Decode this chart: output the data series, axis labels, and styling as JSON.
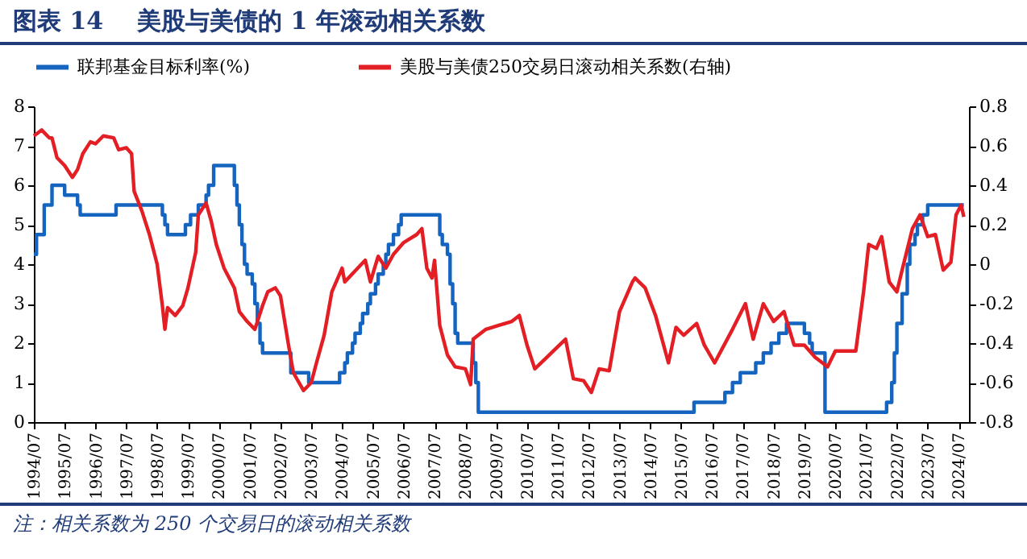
{
  "chart_data": {
    "type": "line",
    "title": "图表 14    美股与美债的 1 年滚动相关系数",
    "annotations": [
      "注：相关系数为 250 个交易日的滚动相关系数"
    ],
    "legend": "top",
    "xlim": [
      "1994-07",
      "2024-11"
    ],
    "xticks": [
      {
        "value": "1994-07",
        "label": "1994/07"
      },
      {
        "value": "1995-07",
        "label": "1995/07"
      },
      {
        "value": "1996-07",
        "label": "1996/07"
      },
      {
        "value": "1997-07",
        "label": "1997/07"
      },
      {
        "value": "1998-07",
        "label": "1998/07"
      },
      {
        "value": "1999-07",
        "label": "1999/07"
      },
      {
        "value": "2000-07",
        "label": "2000/07"
      },
      {
        "value": "2001-07",
        "label": "2001/07"
      },
      {
        "value": "2002-07",
        "label": "2002/07"
      },
      {
        "value": "2003-07",
        "label": "2003/07"
      },
      {
        "value": "2004-07",
        "label": "2004/07"
      },
      {
        "value": "2005-07",
        "label": "2005/07"
      },
      {
        "value": "2006-07",
        "label": "2006/07"
      },
      {
        "value": "2007-07",
        "label": "2007/07"
      },
      {
        "value": "2008-07",
        "label": "2008/07"
      },
      {
        "value": "2009-07",
        "label": "2009/07"
      },
      {
        "value": "2010-07",
        "label": "2010/07"
      },
      {
        "value": "2011-07",
        "label": "2011/07"
      },
      {
        "value": "2012-07",
        "label": "2012/07"
      },
      {
        "value": "2013-07",
        "label": "2013/07"
      },
      {
        "value": "2014-07",
        "label": "2014/07"
      },
      {
        "value": "2015-07",
        "label": "2015/07"
      },
      {
        "value": "2016-07",
        "label": "2016/07"
      },
      {
        "value": "2017-07",
        "label": "2017/07"
      },
      {
        "value": "2018-07",
        "label": "2018/07"
      },
      {
        "value": "2019-07",
        "label": "2019/07"
      },
      {
        "value": "2020-07",
        "label": "2020/07"
      },
      {
        "value": "2021-07",
        "label": "2021/07"
      },
      {
        "value": "2022-07",
        "label": "2022/07"
      },
      {
        "value": "2023-07",
        "label": "2023/07"
      },
      {
        "value": "2024-07",
        "label": "2024/07"
      }
    ],
    "ylim": [
      0,
      8
    ],
    "yticks": [
      0,
      1,
      2,
      3,
      4,
      5,
      6,
      7,
      8
    ],
    "y2lim": [
      -0.8,
      0.8
    ],
    "y2ticks": [
      -0.8,
      -0.6,
      -0.4,
      -0.2,
      0,
      0.2,
      0.4,
      0.6,
      0.8
    ],
    "series": [
      {
        "name": "联邦基金目标利率(%)",
        "type": "step",
        "color": "#1565c0",
        "x": [
          "1994-07",
          "1994-08",
          "1994-11",
          "1995-02",
          "1995-07",
          "1995-12",
          "1996-01",
          "1997-03",
          "1998-09",
          "1998-10",
          "1998-11",
          "1999-06",
          "1999-08",
          "1999-11",
          "2000-02",
          "2000-03",
          "2000-05",
          "2001-01",
          "2001-02",
          "2001-03",
          "2001-04",
          "2001-05",
          "2001-06",
          "2001-08",
          "2001-09",
          "2001-10",
          "2001-11",
          "2001-12",
          "2002-11",
          "2003-06",
          "2004-06",
          "2004-08",
          "2004-09",
          "2004-11",
          "2004-12",
          "2005-02",
          "2005-03",
          "2005-05",
          "2005-06",
          "2005-08",
          "2005-09",
          "2005-11",
          "2005-12",
          "2006-01",
          "2006-03",
          "2006-05",
          "2006-06",
          "2007-09",
          "2007-10",
          "2007-12",
          "2008-01",
          "2008-02",
          "2008-03",
          "2008-04",
          "2008-10",
          "2008-11",
          "2008-12",
          "2015-12",
          "2016-12",
          "2017-03",
          "2017-06",
          "2017-12",
          "2018-03",
          "2018-06",
          "2018-09",
          "2018-12",
          "2019-07",
          "2019-09",
          "2019-10",
          "2020-03",
          "2022-03",
          "2022-05",
          "2022-06",
          "2022-07",
          "2022-09",
          "2022-11",
          "2022-12",
          "2023-02",
          "2023-03",
          "2023-05",
          "2023-07",
          "2024-09"
        ],
        "values": [
          4.25,
          4.75,
          5.5,
          6,
          5.75,
          5.5,
          5.25,
          5.5,
          5.25,
          5,
          4.75,
          5,
          5.25,
          5.5,
          5.75,
          6,
          6.5,
          6,
          5.5,
          5,
          4.5,
          4,
          3.75,
          3.5,
          3,
          2.5,
          2,
          1.75,
          1.25,
          1,
          1.25,
          1.5,
          1.75,
          2,
          2.25,
          2.5,
          2.75,
          3,
          3.25,
          3.5,
          3.75,
          4,
          4.25,
          4.5,
          4.75,
          5,
          5.25,
          4.75,
          4.5,
          4.25,
          3.5,
          3,
          2.25,
          2,
          1.5,
          1,
          0.25,
          0.5,
          0.75,
          1,
          1.25,
          1.5,
          1.75,
          2,
          2.25,
          2.5,
          2.25,
          2,
          1.75,
          0.25,
          0.5,
          1,
          1.75,
          2.5,
          3.25,
          4,
          4.5,
          4.75,
          5,
          5.25,
          5.5,
          5.5
        ]
      },
      {
        "name": "美股与美债250交易日滚动相关系数(右轴)",
        "type": "line",
        "axis": "y2",
        "color": "#e31e24",
        "x": [
          "1994-07",
          "1994-10",
          "1995-01",
          "1995-02",
          "1995-04",
          "1995-07",
          "1995-10",
          "1995-12",
          "1996-02",
          "1996-05",
          "1996-07",
          "1996-10",
          "1997-02",
          "1997-04",
          "1997-07",
          "1997-09",
          "1997-10",
          "1998-01",
          "1998-04",
          "1998-07",
          "1998-09",
          "1998-10",
          "1998-11",
          "1999-02",
          "1999-05",
          "1999-07",
          "1999-10",
          "1999-11",
          "2000-02",
          "2000-04",
          "2000-06",
          "2000-09",
          "2001-01",
          "2001-03",
          "2001-06",
          "2001-09",
          "2001-12",
          "2002-02",
          "2002-05",
          "2002-07",
          "2002-10",
          "2002-12",
          "2003-04",
          "2003-07",
          "2003-09",
          "2003-12",
          "2004-03",
          "2004-07",
          "2004-08",
          "2005-01",
          "2005-04",
          "2005-06",
          "2005-09",
          "2005-12",
          "2006-03",
          "2006-07",
          "2006-12",
          "2007-02",
          "2007-04",
          "2007-06",
          "2007-07",
          "2007-09",
          "2007-12",
          "2008-03",
          "2008-07",
          "2008-09",
          "2008-10",
          "2009-03",
          "2009-08",
          "2010-01",
          "2010-04",
          "2010-07",
          "2010-10",
          "2011-02",
          "2011-06",
          "2011-10",
          "2012-01",
          "2012-05",
          "2012-08",
          "2012-11",
          "2013-03",
          "2013-07",
          "2013-12",
          "2014-01",
          "2014-05",
          "2014-09",
          "2015-02",
          "2015-05",
          "2015-08",
          "2016-01",
          "2016-04",
          "2016-08",
          "2017-03",
          "2017-08",
          "2017-11",
          "2018-03",
          "2018-07",
          "2018-11",
          "2019-03",
          "2019-07",
          "2019-11",
          "2020-04",
          "2020-07",
          "2021-03",
          "2021-06",
          "2021-08",
          "2021-11",
          "2022-01",
          "2022-04",
          "2022-07",
          "2022-09",
          "2023-01",
          "2023-04",
          "2023-07",
          "2023-10",
          "2024-01",
          "2024-04",
          "2024-06",
          "2024-08",
          "2024-09"
        ],
        "values": [
          0.65,
          0.68,
          0.64,
          0.64,
          0.54,
          0.5,
          0.44,
          0.48,
          0.56,
          0.62,
          0.61,
          0.65,
          0.64,
          0.58,
          0.59,
          0.56,
          0.37,
          0.27,
          0.15,
          0,
          -0.21,
          -0.33,
          -0.22,
          -0.26,
          -0.21,
          -0.12,
          0.06,
          0.25,
          0.31,
          0.22,
          0.1,
          -0.02,
          -0.12,
          -0.24,
          -0.29,
          -0.33,
          -0.21,
          -0.14,
          -0.12,
          -0.16,
          -0.4,
          -0.55,
          -0.64,
          -0.6,
          -0.5,
          -0.36,
          -0.14,
          -0.02,
          -0.09,
          -0.02,
          0.02,
          -0.09,
          0.04,
          -0.02,
          0.05,
          0.11,
          0.15,
          0.18,
          -0.02,
          -0.07,
          0.02,
          -0.31,
          -0.46,
          -0.52,
          -0.53,
          -0.61,
          -0.38,
          -0.33,
          -0.31,
          -0.29,
          -0.26,
          -0.41,
          -0.53,
          -0.48,
          -0.43,
          -0.38,
          -0.58,
          -0.59,
          -0.65,
          -0.53,
          -0.54,
          -0.24,
          -0.09,
          -0.07,
          -0.12,
          -0.26,
          -0.5,
          -0.32,
          -0.36,
          -0.3,
          -0.41,
          -0.5,
          -0.33,
          -0.2,
          -0.38,
          -0.2,
          -0.29,
          -0.24,
          -0.41,
          -0.41,
          -0.47,
          -0.52,
          -0.44,
          -0.44,
          -0.14,
          0.1,
          0.08,
          0.14,
          -0.09,
          -0.14,
          -0.03,
          0.18,
          0.25,
          0.14,
          0.15,
          -0.03,
          0.01,
          0.25,
          0.3,
          0.24
        ]
      }
    ]
  }
}
